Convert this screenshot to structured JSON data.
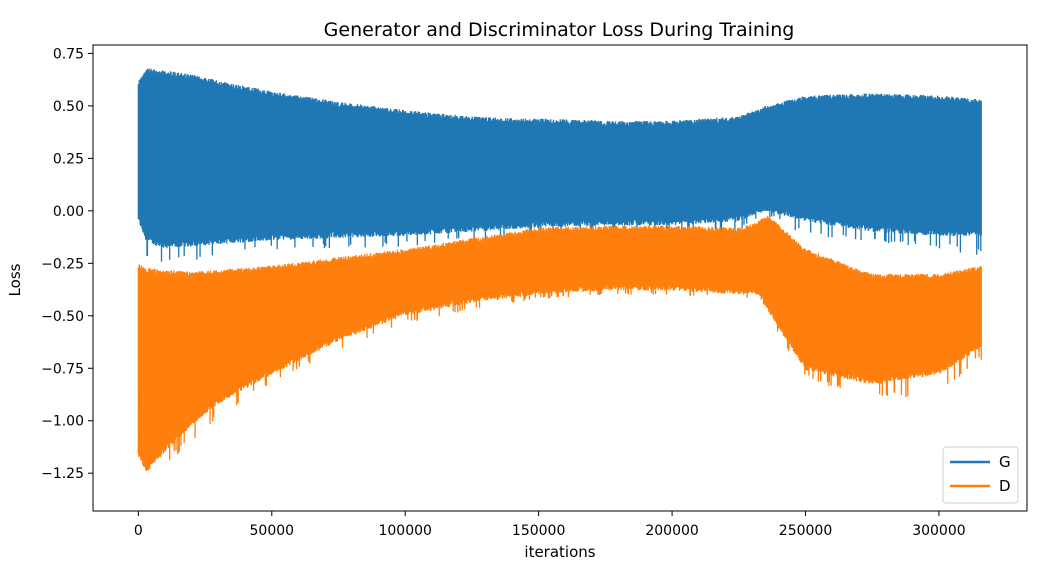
{
  "chart_data": {
    "type": "line",
    "title": "Generator and Discriminator Loss During Training",
    "xlabel": "iterations",
    "ylabel": "Loss",
    "xlim": [
      -17000,
      333000
    ],
    "ylim": [
      -1.43,
      0.79
    ],
    "xticks": [
      0,
      50000,
      100000,
      150000,
      200000,
      250000,
      300000
    ],
    "xtick_labels": [
      "0",
      "50000",
      "100000",
      "150000",
      "200000",
      "250000",
      "300000"
    ],
    "yticks": [
      0.75,
      0.5,
      0.25,
      0.0,
      -0.25,
      -0.5,
      -0.75,
      -1.0,
      -1.25
    ],
    "ytick_labels": [
      "0.75",
      "0.50",
      "0.25",
      "0.00",
      "−0.25",
      "−0.50",
      "−0.75",
      "−1.00",
      "−1.25"
    ],
    "grid": false,
    "legend_position": "lower-right",
    "series": [
      {
        "name": "G",
        "color": "#1f77b4",
        "x": [
          0,
          3000,
          10000,
          20000,
          30000,
          50000,
          75000,
          100000,
          125000,
          150000,
          175000,
          200000,
          225000,
          235000,
          250000,
          275000,
          300000,
          316000
        ],
        "upper": [
          0.62,
          0.68,
          0.67,
          0.65,
          0.62,
          0.57,
          0.52,
          0.48,
          0.45,
          0.44,
          0.43,
          0.43,
          0.45,
          0.5,
          0.55,
          0.56,
          0.55,
          0.53
        ],
        "lower": [
          -0.05,
          -0.15,
          -0.18,
          -0.17,
          -0.16,
          -0.14,
          -0.13,
          -0.12,
          -0.1,
          -0.08,
          -0.07,
          -0.07,
          -0.05,
          0.0,
          -0.05,
          -0.1,
          -0.12,
          -0.12
        ],
        "low_spikes": [
          -0.25,
          -0.25,
          -0.26,
          -0.24,
          -0.22,
          -0.19,
          -0.18,
          -0.17,
          -0.15,
          -0.13,
          -0.12,
          -0.12,
          -0.1,
          -0.02,
          -0.12,
          -0.15,
          -0.18,
          -0.22
        ]
      },
      {
        "name": "D",
        "color": "#ff7f0e",
        "x": [
          0,
          3000,
          10000,
          20000,
          30000,
          50000,
          75000,
          100000,
          125000,
          150000,
          175000,
          200000,
          225000,
          232000,
          236000,
          250000,
          275000,
          300000,
          316000
        ],
        "upper": [
          -0.25,
          -0.27,
          -0.28,
          -0.29,
          -0.28,
          -0.26,
          -0.22,
          -0.18,
          -0.13,
          -0.08,
          -0.07,
          -0.07,
          -0.08,
          -0.05,
          -0.02,
          -0.18,
          -0.3,
          -0.3,
          -0.26
        ],
        "lower": [
          -1.17,
          -1.25,
          -1.15,
          -1.02,
          -0.92,
          -0.78,
          -0.62,
          -0.5,
          -0.44,
          -0.4,
          -0.38,
          -0.38,
          -0.4,
          -0.4,
          -0.48,
          -0.76,
          -0.83,
          -0.78,
          -0.65
        ],
        "low_spikes": [
          -1.32,
          -1.32,
          -1.22,
          -1.1,
          -0.98,
          -0.83,
          -0.66,
          -0.54,
          -0.47,
          -0.42,
          -0.4,
          -0.4,
          -0.42,
          -0.42,
          -0.52,
          -0.8,
          -0.9,
          -0.88,
          -0.71
        ]
      }
    ]
  }
}
